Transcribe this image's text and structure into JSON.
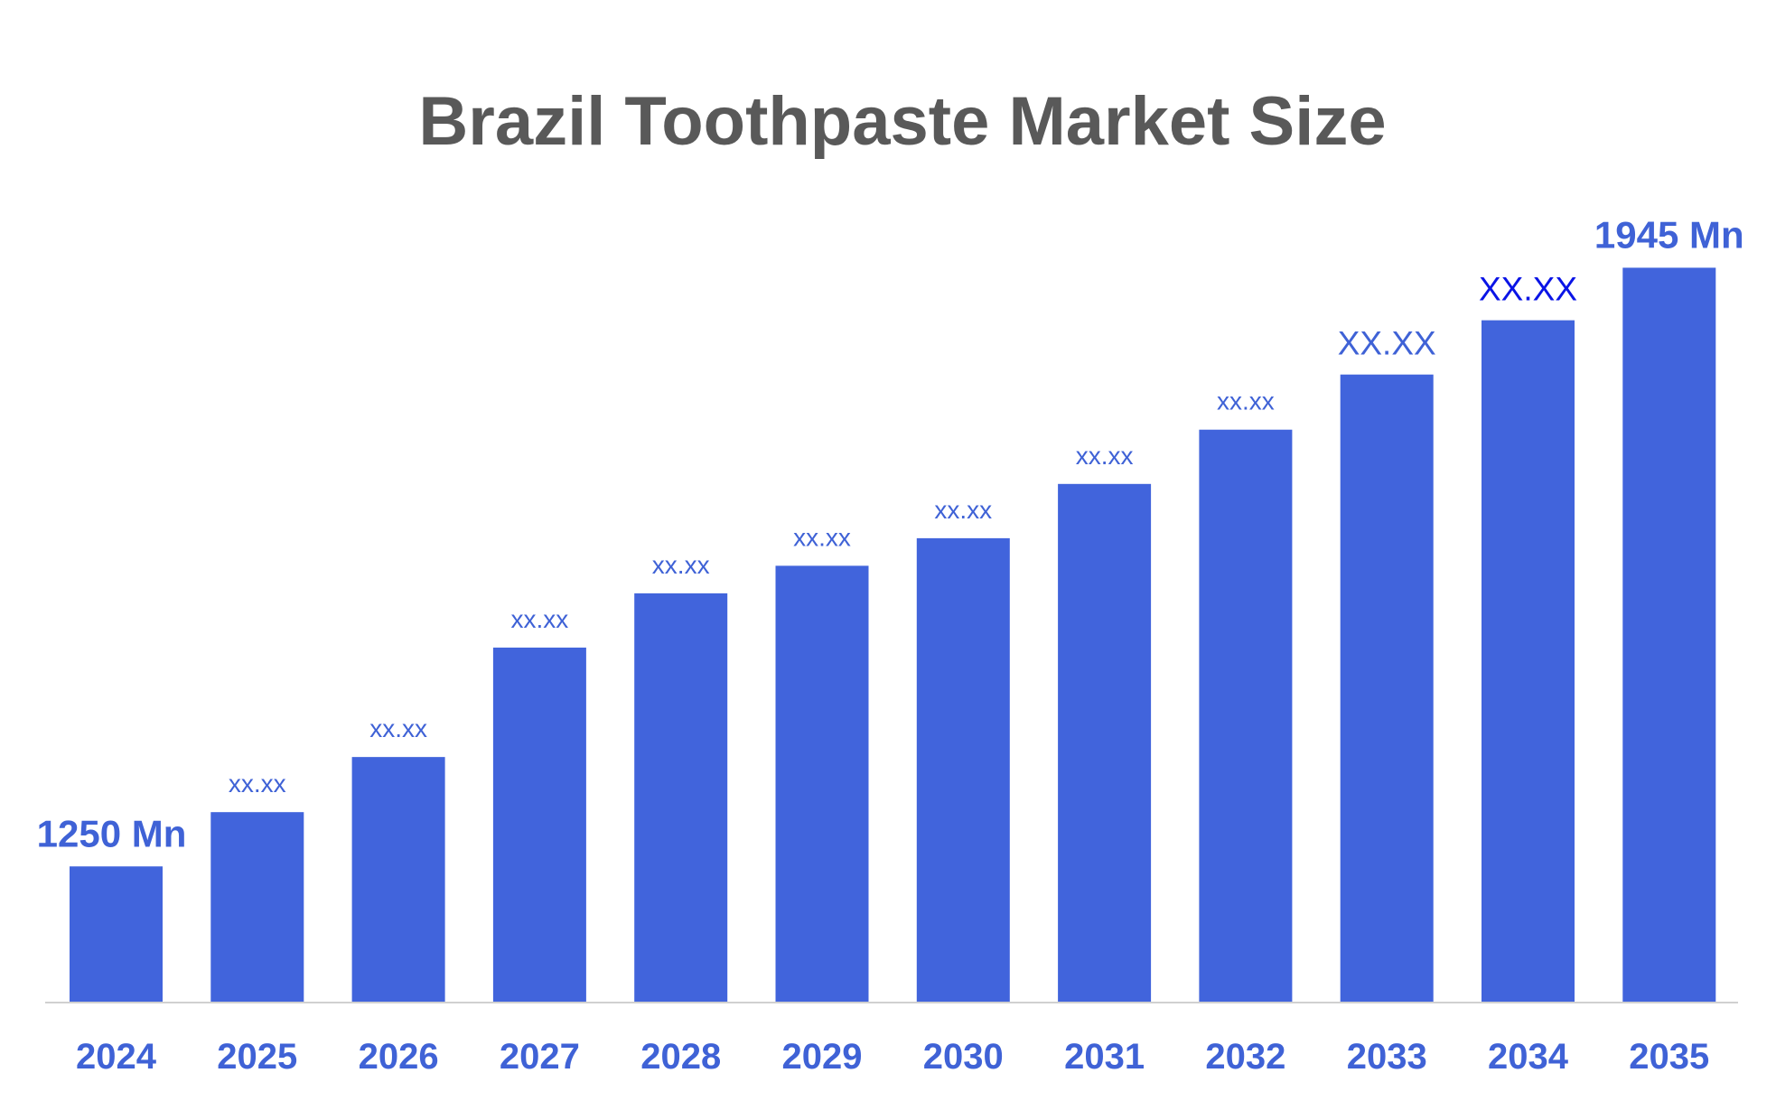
{
  "chart_data": {
    "type": "bar",
    "title": "Brazil Toothpaste Market Size",
    "categories": [
      "2024",
      "2025",
      "2026",
      "2027",
      "2028",
      "2029",
      "2030",
      "2031",
      "2032",
      "2033",
      "2034",
      "2035"
    ],
    "values": [
      1250,
      1313,
      1377,
      1504,
      1567,
      1599,
      1631,
      1694,
      1757,
      1821,
      1884,
      1945
    ],
    "value_labels": [
      "1250 Mn",
      "xx.xx",
      "xx.xx",
      "xx.xx",
      "xx.xx",
      "xx.xx",
      "xx.xx",
      "xx.xx",
      "xx.xx",
      "XX.XX",
      "XX.XX",
      "1945 Mn"
    ],
    "color": "#4164dc",
    "label_colors": [
      "#3f62d6",
      "#3f62d6",
      "#3f62d6",
      "#3f62d6",
      "#3f62d6",
      "#3f62d6",
      "#3f62d6",
      "#3f62d6",
      "#3f62d6",
      "#3f62d6",
      "#0a14e6",
      "#3f62d6"
    ],
    "ylim": [
      1093,
      2044
    ]
  }
}
